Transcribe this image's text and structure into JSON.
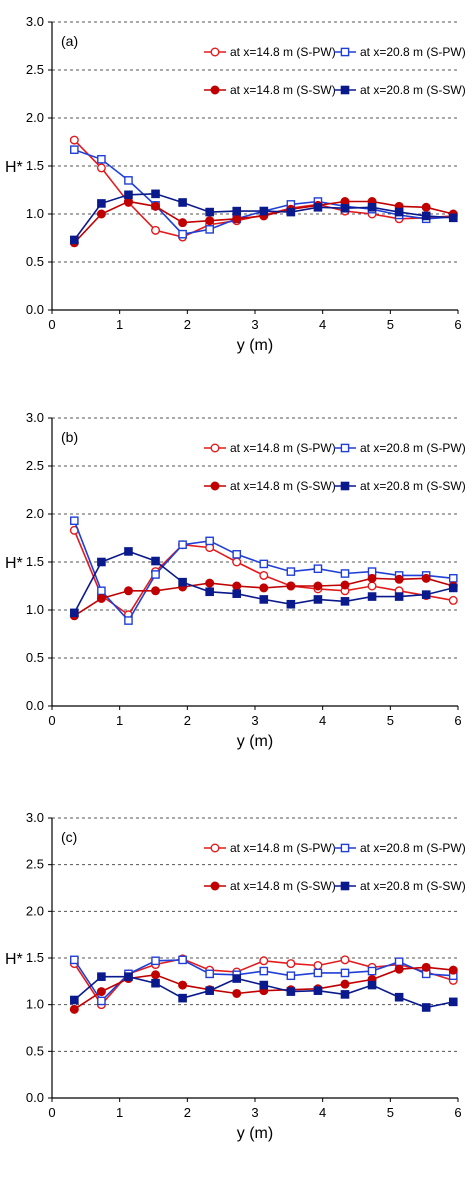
{
  "chart_data": [
    {
      "type": "line",
      "panel_label": "(a)",
      "xlabel": "y (m)",
      "ylabel": "H*",
      "xlim": [
        0,
        6
      ],
      "ylim": [
        0.0,
        3.0
      ],
      "x_ticks": [
        "0",
        "1",
        "2",
        "3",
        "4",
        "5",
        "6"
      ],
      "y_ticks": [
        "0.0",
        "0.5",
        "1.0",
        "1.5",
        "2.0",
        "2.5",
        "3.0"
      ],
      "grid": "horizontal dashed",
      "legend_position": "top-right",
      "series": [
        {
          "name": "at x=14.8 m (S-PW)",
          "color": "#e31a1c",
          "marker": "circle-open",
          "x": [
            0.33,
            0.73,
            1.13,
            1.53,
            1.93,
            2.33,
            2.73,
            3.13,
            3.53,
            3.93,
            4.33,
            4.73,
            5.13,
            5.53,
            5.93
          ],
          "y": [
            1.77,
            1.48,
            1.12,
            0.83,
            0.76,
            0.89,
            0.93,
            0.99,
            1.06,
            1.1,
            1.03,
            1.0,
            0.95,
            0.96,
            0.98
          ]
        },
        {
          "name": "at x=20.8 m (S-PW)",
          "color": "#1f3fd6",
          "marker": "square-open",
          "x": [
            0.33,
            0.73,
            1.13,
            1.53,
            1.93,
            2.33,
            2.73,
            3.13,
            3.53,
            3.93,
            4.33,
            4.73,
            5.13,
            5.53,
            5.93
          ],
          "y": [
            1.67,
            1.57,
            1.35,
            1.09,
            0.79,
            0.84,
            0.95,
            1.03,
            1.1,
            1.13,
            1.08,
            1.05,
            0.99,
            0.95,
            0.97
          ]
        },
        {
          "name": "at x=14.8 m (S-SW)",
          "color": "#c00000",
          "marker": "circle-filled",
          "x": [
            0.33,
            0.73,
            1.13,
            1.53,
            1.93,
            2.33,
            2.73,
            3.13,
            3.53,
            3.93,
            4.33,
            4.73,
            5.13,
            5.53,
            5.93
          ],
          "y": [
            0.7,
            1.0,
            1.13,
            1.08,
            0.91,
            0.93,
            0.95,
            0.98,
            1.05,
            1.09,
            1.13,
            1.13,
            1.08,
            1.07,
            1.0
          ]
        },
        {
          "name": "at x=20.8 m (S-SW)",
          "color": "#0a1a8c",
          "marker": "square-filled",
          "x": [
            0.33,
            0.73,
            1.13,
            1.53,
            1.93,
            2.33,
            2.73,
            3.13,
            3.53,
            3.93,
            4.33,
            4.73,
            5.13,
            5.53,
            5.93
          ],
          "y": [
            0.73,
            1.11,
            1.2,
            1.21,
            1.12,
            1.02,
            1.03,
            1.03,
            1.02,
            1.07,
            1.06,
            1.07,
            1.02,
            0.98,
            0.96
          ]
        }
      ]
    },
    {
      "type": "line",
      "panel_label": "(b)",
      "xlabel": "y (m)",
      "ylabel": "H*",
      "xlim": [
        0,
        6
      ],
      "ylim": [
        0.0,
        3.0
      ],
      "x_ticks": [
        "0",
        "1",
        "2",
        "3",
        "4",
        "5",
        "6"
      ],
      "y_ticks": [
        "0.0",
        "0.5",
        "1.0",
        "1.5",
        "2.0",
        "2.5",
        "3.0"
      ],
      "grid": "horizontal dashed",
      "legend_position": "top-right",
      "series": [
        {
          "name": "at x=14.8 m (S-PW)",
          "color": "#e31a1c",
          "marker": "circle-open",
          "x": [
            0.33,
            0.73,
            1.13,
            1.53,
            1.93,
            2.33,
            2.73,
            3.13,
            3.53,
            3.93,
            4.33,
            4.73,
            5.13,
            5.53,
            5.93
          ],
          "y": [
            1.83,
            1.15,
            0.95,
            1.4,
            1.68,
            1.65,
            1.5,
            1.36,
            1.25,
            1.22,
            1.2,
            1.25,
            1.2,
            1.15,
            1.1
          ]
        },
        {
          "name": "at x=20.8 m (S-PW)",
          "color": "#1f3fd6",
          "marker": "square-open",
          "x": [
            0.33,
            0.73,
            1.13,
            1.53,
            1.93,
            2.33,
            2.73,
            3.13,
            3.53,
            3.93,
            4.33,
            4.73,
            5.13,
            5.53,
            5.93
          ],
          "y": [
            1.93,
            1.2,
            0.89,
            1.37,
            1.68,
            1.72,
            1.58,
            1.48,
            1.4,
            1.43,
            1.38,
            1.4,
            1.36,
            1.36,
            1.33
          ]
        },
        {
          "name": "at x=14.8 m (S-SW)",
          "color": "#c00000",
          "marker": "circle-filled",
          "x": [
            0.33,
            0.73,
            1.13,
            1.53,
            1.93,
            2.33,
            2.73,
            3.13,
            3.53,
            3.93,
            4.33,
            4.73,
            5.13,
            5.53,
            5.93
          ],
          "y": [
            0.94,
            1.12,
            1.2,
            1.2,
            1.24,
            1.28,
            1.25,
            1.23,
            1.25,
            1.25,
            1.26,
            1.33,
            1.32,
            1.33,
            1.25
          ]
        },
        {
          "name": "at x=20.8 m (S-SW)",
          "color": "#0a1a8c",
          "marker": "square-filled",
          "x": [
            0.33,
            0.73,
            1.13,
            1.53,
            1.93,
            2.33,
            2.73,
            3.13,
            3.53,
            3.93,
            4.33,
            4.73,
            5.13,
            5.53,
            5.93
          ],
          "y": [
            0.97,
            1.5,
            1.61,
            1.51,
            1.29,
            1.19,
            1.17,
            1.11,
            1.06,
            1.11,
            1.09,
            1.14,
            1.14,
            1.16,
            1.23
          ]
        }
      ]
    },
    {
      "type": "line",
      "panel_label": "(c)",
      "xlabel": "y (m)",
      "ylabel": "H*",
      "xlim": [
        0,
        6
      ],
      "ylim": [
        0.0,
        3.0
      ],
      "x_ticks": [
        "0",
        "1",
        "2",
        "3",
        "4",
        "5",
        "6"
      ],
      "y_ticks": [
        "0.0",
        "0.5",
        "1.0",
        "1.5",
        "2.0",
        "2.5",
        "3.0"
      ],
      "grid": "horizontal dashed",
      "legend_position": "top-right",
      "series": [
        {
          "name": "at x=14.8 m (S-PW)",
          "color": "#e31a1c",
          "marker": "circle-open",
          "x": [
            0.33,
            0.73,
            1.13,
            1.53,
            1.93,
            2.33,
            2.73,
            3.13,
            3.53,
            3.93,
            4.33,
            4.73,
            5.13,
            5.53,
            5.93
          ],
          "y": [
            1.44,
            1.0,
            1.33,
            1.43,
            1.49,
            1.37,
            1.35,
            1.47,
            1.44,
            1.42,
            1.48,
            1.4,
            1.43,
            1.35,
            1.26
          ]
        },
        {
          "name": "at x=20.8 m (S-PW)",
          "color": "#1f3fd6",
          "marker": "square-open",
          "x": [
            0.33,
            0.73,
            1.13,
            1.53,
            1.93,
            2.33,
            2.73,
            3.13,
            3.53,
            3.93,
            4.33,
            4.73,
            5.13,
            5.53,
            5.93
          ],
          "y": [
            1.48,
            1.04,
            1.33,
            1.47,
            1.48,
            1.33,
            1.32,
            1.36,
            1.31,
            1.34,
            1.34,
            1.36,
            1.46,
            1.33,
            1.31
          ]
        },
        {
          "name": "at x=14.8 m (S-SW)",
          "color": "#c00000",
          "marker": "circle-filled",
          "x": [
            0.33,
            0.73,
            1.13,
            1.53,
            1.93,
            2.33,
            2.73,
            3.13,
            3.53,
            3.93,
            4.33,
            4.73,
            5.13,
            5.53,
            5.93
          ],
          "y": [
            0.95,
            1.14,
            1.28,
            1.32,
            1.21,
            1.16,
            1.12,
            1.15,
            1.16,
            1.17,
            1.22,
            1.27,
            1.38,
            1.4,
            1.37
          ]
        },
        {
          "name": "at x=20.8 m (S-SW)",
          "color": "#0a1a8c",
          "marker": "square-filled",
          "x": [
            0.33,
            0.73,
            1.13,
            1.53,
            1.93,
            2.33,
            2.73,
            3.13,
            3.53,
            3.93,
            4.33,
            4.73,
            5.13,
            5.53,
            5.93
          ],
          "y": [
            1.05,
            1.3,
            1.3,
            1.23,
            1.07,
            1.15,
            1.28,
            1.21,
            1.14,
            1.15,
            1.11,
            1.21,
            1.08,
            0.97,
            1.03
          ]
        }
      ]
    }
  ]
}
